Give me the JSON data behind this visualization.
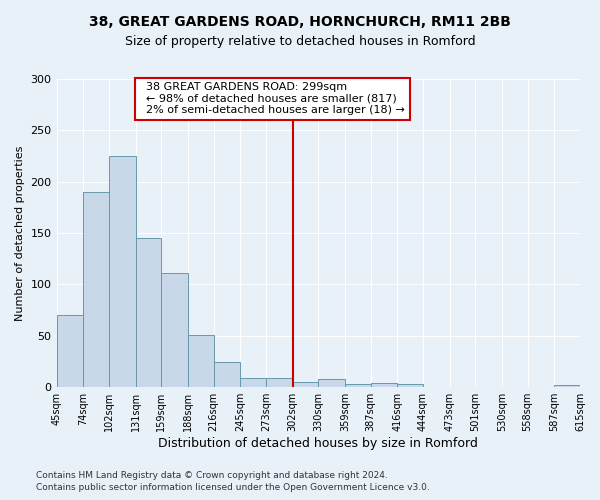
{
  "title_line1": "38, GREAT GARDENS ROAD, HORNCHURCH, RM11 2BB",
  "title_line2": "Size of property relative to detached houses in Romford",
  "xlabel": "Distribution of detached houses by size in Romford",
  "ylabel": "Number of detached properties",
  "footer_line1": "Contains HM Land Registry data © Crown copyright and database right 2024.",
  "footer_line2": "Contains public sector information licensed under the Open Government Licence v3.0.",
  "annotation_line1": "38 GREAT GARDENS ROAD: 299sqm",
  "annotation_line2": "← 98% of detached houses are smaller (817)",
  "annotation_line3": "2% of semi-detached houses are larger (18) →",
  "bin_edges": [
    45,
    74,
    102,
    131,
    159,
    188,
    216,
    245,
    273,
    302,
    330,
    359,
    387,
    416,
    444,
    473,
    501,
    530,
    558,
    587,
    615
  ],
  "bar_heights": [
    70,
    190,
    225,
    145,
    111,
    51,
    25,
    9,
    9,
    5,
    8,
    3,
    4,
    3,
    0,
    0,
    0,
    0,
    0,
    2
  ],
  "bar_color": "#c8d8e8",
  "bar_edge_color": "#6699aa",
  "vline_color": "#cc0000",
  "vline_x": 302,
  "background_color": "#e8f0f8",
  "ylim_max": 300,
  "yticks": [
    0,
    50,
    100,
    150,
    200,
    250,
    300
  ]
}
